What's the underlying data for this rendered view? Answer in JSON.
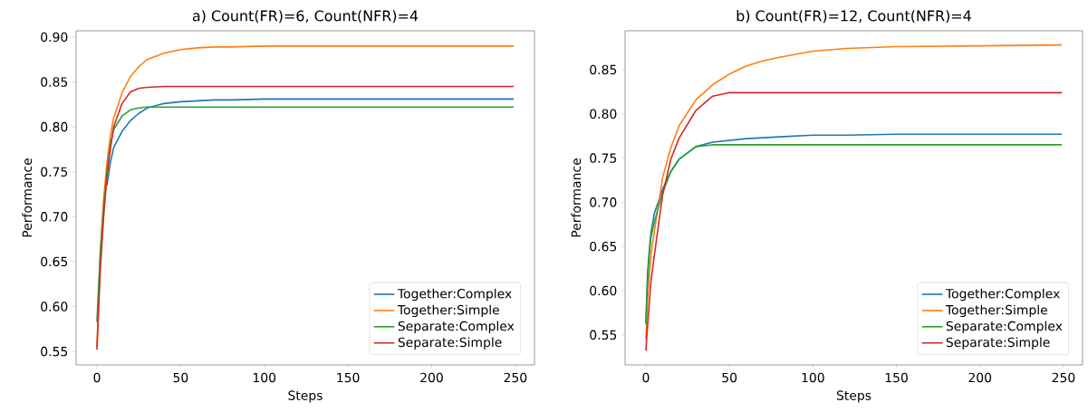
{
  "chart_data": [
    {
      "type": "line",
      "title": "a) Count(FR)=6, Count(NFR)=4",
      "xlabel": "Steps",
      "ylabel": "Performance",
      "x": [
        0,
        2,
        4,
        6,
        8,
        10,
        15,
        20,
        25,
        30,
        40,
        50,
        60,
        70,
        80,
        100,
        150,
        200,
        249
      ],
      "series": [
        {
          "name": "Together:Complex",
          "color": "#1f77b4",
          "values": [
            null,
            null,
            null,
            0.735,
            0.76,
            0.777,
            0.795,
            0.807,
            0.815,
            0.821,
            0.826,
            0.828,
            0.829,
            0.83,
            0.83,
            0.831,
            0.831,
            0.831,
            0.831
          ]
        },
        {
          "name": "Together:Simple",
          "color": "#ff7f0e",
          "values": [
            0.555,
            0.66,
            0.72,
            0.76,
            0.79,
            0.81,
            0.838,
            0.856,
            0.867,
            0.875,
            0.882,
            0.886,
            0.888,
            0.889,
            0.889,
            0.89,
            0.89,
            0.89,
            0.89
          ]
        },
        {
          "name": "Separate:Complex",
          "color": "#2ca02c",
          "values": [
            0.583,
            0.66,
            0.71,
            0.75,
            0.78,
            0.797,
            0.812,
            0.819,
            0.821,
            0.822,
            0.822,
            0.822,
            0.822,
            0.822,
            0.822,
            0.822,
            0.822,
            0.822,
            0.822
          ]
        },
        {
          "name": "Separate:Simple",
          "color": "#d62728",
          "values": [
            0.552,
            0.64,
            0.7,
            0.745,
            0.775,
            0.8,
            0.826,
            0.839,
            0.843,
            0.844,
            0.845,
            0.845,
            0.845,
            0.845,
            0.845,
            0.845,
            0.845,
            0.845,
            0.845
          ]
        }
      ],
      "xlim": [
        -12.45,
        261.45
      ],
      "ylim": [
        0.535,
        0.907
      ],
      "xticks": [
        0,
        50,
        100,
        150,
        200,
        250
      ],
      "yticks": [
        {
          "value": 0.55,
          "label": "0.55"
        },
        {
          "value": 0.6,
          "label": "0.60"
        },
        {
          "value": 0.65,
          "label": "0.65"
        },
        {
          "value": 0.7,
          "label": "0.70"
        },
        {
          "value": 0.75,
          "label": "0.75"
        },
        {
          "value": 0.8,
          "label": "0.80"
        },
        {
          "value": 0.85,
          "label": "0.85"
        },
        {
          "value": 0.9,
          "label": "0.90"
        }
      ],
      "legend": "bottom right"
    },
    {
      "type": "line",
      "title": "b) Count(FR)=12, Count(NFR)=4",
      "xlabel": "Steps",
      "ylabel": "Performance",
      "x": [
        0,
        1,
        2,
        3,
        5,
        10,
        15,
        20,
        30,
        40,
        50,
        60,
        70,
        80,
        100,
        120,
        150,
        200,
        249
      ],
      "series": [
        {
          "name": "Together:Complex",
          "color": "#1f77b4",
          "values": [
            0.565,
            0.62,
            0.645,
            0.665,
            0.687,
            0.715,
            0.735,
            0.749,
            0.763,
            0.768,
            0.77,
            0.772,
            0.773,
            0.774,
            0.776,
            0.776,
            0.777,
            0.777,
            0.777
          ]
        },
        {
          "name": "Together:Simple",
          "color": "#ff7f0e",
          "values": [
            0.545,
            0.59,
            0.615,
            0.64,
            0.666,
            0.728,
            0.762,
            0.787,
            0.816,
            0.833,
            0.845,
            0.854,
            0.86,
            0.864,
            0.871,
            0.874,
            0.876,
            0.877,
            0.878
          ]
        },
        {
          "name": "Separate:Complex",
          "color": "#2ca02c",
          "values": [
            0.562,
            0.61,
            0.64,
            0.66,
            0.677,
            0.711,
            0.735,
            0.749,
            0.763,
            0.765,
            0.765,
            0.765,
            0.765,
            0.765,
            0.765,
            0.765,
            0.765,
            0.765,
            0.765
          ]
        },
        {
          "name": "Separate:Simple",
          "color": "#d62728",
          "values": [
            0.532,
            0.56,
            0.585,
            0.61,
            0.639,
            0.708,
            0.749,
            0.773,
            0.804,
            0.82,
            0.824,
            0.824,
            0.824,
            0.824,
            0.824,
            0.824,
            0.824,
            0.824,
            0.824
          ]
        }
      ],
      "xlim": [
        -12.45,
        261.45
      ],
      "ylim": [
        0.516,
        0.894
      ],
      "xticks": [
        0,
        50,
        100,
        150,
        200,
        250
      ],
      "yticks": [
        {
          "value": 0.55,
          "label": "0.55"
        },
        {
          "value": 0.6,
          "label": "0.60"
        },
        {
          "value": 0.65,
          "label": "0.65"
        },
        {
          "value": 0.7,
          "label": "0.70"
        },
        {
          "value": 0.75,
          "label": "0.75"
        },
        {
          "value": 0.8,
          "label": "0.80"
        },
        {
          "value": 0.85,
          "label": "0.85"
        }
      ],
      "legend": "bottom right"
    }
  ]
}
